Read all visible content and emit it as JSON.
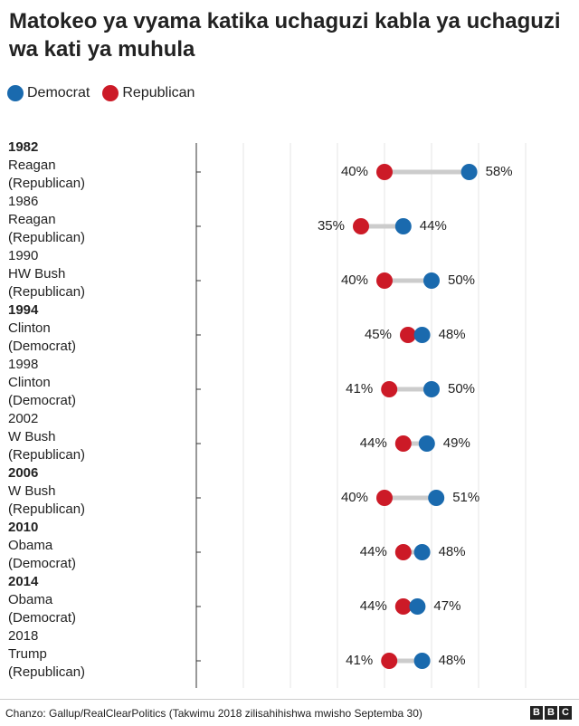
{
  "chart_data": {
    "type": "dumbbell",
    "title": "Matokeo ya vyama katika uchaguzi kabla ya uchaguzi wa kati ya muhula",
    "rows": [
      {
        "year": "1982",
        "president": "Reagan",
        "party": "(Republican)",
        "bold": true
      },
      {
        "year": "1986",
        "president": "Reagan",
        "party": "(Republican)",
        "bold": false
      },
      {
        "year": "1990",
        "president": "HW Bush",
        "party": "(Republican)",
        "bold": false
      },
      {
        "year": "1994",
        "president": "Clinton",
        "party": "(Democrat)",
        "bold": true
      },
      {
        "year": "1998",
        "president": "Clinton",
        "party": "(Democrat)",
        "bold": false
      },
      {
        "year": "2002",
        "president": "W Bush",
        "party": "(Republican)",
        "bold": false
      },
      {
        "year": "2006",
        "president": "W Bush",
        "party": "(Republican)",
        "bold": true
      },
      {
        "year": "2010",
        "president": "Obama",
        "party": "(Democrat)",
        "bold": true
      },
      {
        "year": "2014",
        "president": "Obama",
        "party": "(Democrat)",
        "bold": true
      },
      {
        "year": "2018",
        "president": "Trump",
        "party": "(Republican)",
        "bold": false
      }
    ],
    "series": [
      {
        "name": "Democrat",
        "color": "#1a6aae",
        "values": [
          58,
          44,
          50,
          48,
          50,
          49,
          51,
          48,
          47,
          48
        ],
        "value_labels": [
          "58%",
          "44%",
          "50%",
          "48%",
          "50%",
          "49%",
          "51%",
          "48%",
          "47%",
          "48%"
        ]
      },
      {
        "name": "Republican",
        "color": "#cc1a27",
        "values": [
          40,
          35,
          40,
          45,
          41,
          44,
          40,
          44,
          44,
          41
        ],
        "value_labels": [
          "40%",
          "35%",
          "40%",
          "45%",
          "41%",
          "44%",
          "40%",
          "44%",
          "44%",
          "41%"
        ]
      }
    ],
    "xlim": [
      0,
      70
    ],
    "xgrid": [
      10,
      20,
      30,
      40,
      50,
      60,
      70
    ],
    "grid": true,
    "source": "Chanzo: Gallup/RealClearPolitics (Takwimu 2018 zilisahihishwa mwisho Septemba 30)",
    "logo": "BBC"
  }
}
